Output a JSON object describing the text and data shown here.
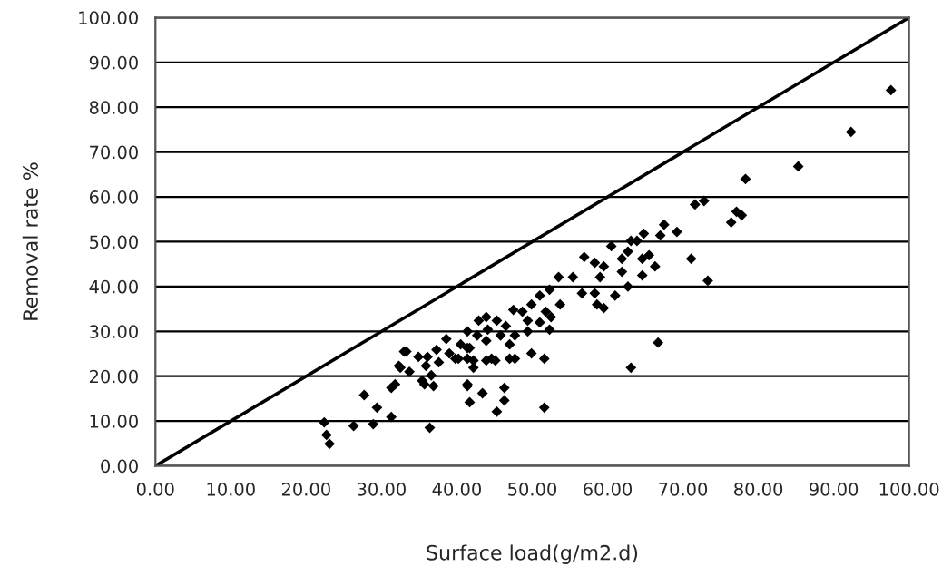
{
  "chart_data": {
    "type": "scatter",
    "xlabel": "Surface load(g/m2.d)",
    "ylabel": "Removal rate %",
    "xlim": [
      0,
      100
    ],
    "ylim": [
      0,
      100
    ],
    "xticks": [
      {
        "value": 0,
        "label": "0.00"
      },
      {
        "value": 10,
        "label": "10.00"
      },
      {
        "value": 20,
        "label": "20.00"
      },
      {
        "value": 30,
        "label": "30.00"
      },
      {
        "value": 40,
        "label": "40.00"
      },
      {
        "value": 50,
        "label": "50.00"
      },
      {
        "value": 60,
        "label": "60.00"
      },
      {
        "value": 70,
        "label": "70.00"
      },
      {
        "value": 80,
        "label": "80.00"
      },
      {
        "value": 90,
        "label": "90.00"
      },
      {
        "value": 100,
        "label": "100.00"
      }
    ],
    "yticks": [
      {
        "value": 0,
        "label": "0.00"
      },
      {
        "value": 10,
        "label": "10.00"
      },
      {
        "value": 20,
        "label": "20.00"
      },
      {
        "value": 30,
        "label": "30.00"
      },
      {
        "value": 40,
        "label": "40.00"
      },
      {
        "value": 50,
        "label": "50.00"
      },
      {
        "value": 60,
        "label": "60.00"
      },
      {
        "value": 70,
        "label": "70.00"
      },
      {
        "value": 80,
        "label": "80.00"
      },
      {
        "value": 90,
        "label": "90.00"
      },
      {
        "value": 100,
        "label": "100.00"
      }
    ],
    "grid": "y",
    "legend": false,
    "series": [
      {
        "marker": "diamond",
        "color": "#000000",
        "x": [
          97.6,
          92.3,
          85.3,
          78.3,
          71.6,
          72.8,
          77.1,
          77.8,
          76.4,
          67.5,
          67,
          69.2,
          66.3,
          71.1,
          73.3,
          64.8,
          63.9,
          63.1,
          60.5,
          65.5,
          64.6,
          62.7,
          61.9,
          56.9,
          58.3,
          59.5,
          64.6,
          61.9,
          53.5,
          55.4,
          59,
          56.6,
          58.3,
          61,
          62.7,
          52.3,
          51,
          58.6,
          59.5,
          49.9,
          53.7,
          51.8,
          52.5,
          48.7,
          47.5,
          49.4,
          51,
          46.5,
          45.3,
          44.1,
          42.9,
          42.7,
          45.8,
          47.7,
          49.4,
          52.3,
          43.9,
          47,
          41.7,
          40.5,
          66.7,
          41.4,
          43.9,
          45.1,
          47,
          47.7,
          49.9,
          51.6,
          40.2,
          42.2,
          63.1,
          41.4,
          43.4,
          46.3,
          41.7,
          46.3,
          45.3,
          51.6,
          22.4,
          22.7,
          23.1,
          26.3,
          28.9,
          31.3,
          27.7,
          29.4,
          31.3,
          31.8,
          36.4,
          33,
          33.3,
          32.3,
          32.5,
          33.7,
          34.9,
          35.9,
          36.1,
          37.3,
          35.4,
          36.6,
          35.7,
          36.9,
          38.6,
          39,
          37.6,
          39.8,
          41.4,
          42.2,
          41.4,
          44.6,
          41.4,
          43.9
        ],
        "values": [
          83.8,
          74.5,
          66.8,
          64,
          58.3,
          59.1,
          56.7,
          55.9,
          54.3,
          53.8,
          51.4,
          52.2,
          44.5,
          46.2,
          41.3,
          51.8,
          50.2,
          50.2,
          49,
          47,
          46.2,
          47.8,
          46.2,
          46.6,
          45.3,
          44.5,
          42.5,
          43.3,
          42.1,
          42.1,
          42.1,
          38.5,
          38.5,
          38,
          40,
          39.3,
          38,
          36,
          35.2,
          36,
          36,
          34.4,
          33.2,
          34.4,
          34.8,
          32.4,
          32,
          31.2,
          32.4,
          30.4,
          32.4,
          29.1,
          29.1,
          29.1,
          30,
          30.4,
          27.9,
          27.1,
          26.3,
          27.1,
          27.5,
          23.9,
          23.5,
          23.5,
          23.9,
          23.9,
          25.1,
          23.9,
          23.9,
          21.9,
          21.9,
          17.8,
          16.2,
          17.4,
          14.2,
          14.6,
          12.1,
          13,
          9.7,
          6.9,
          4.9,
          8.9,
          9.3,
          10.9,
          15.8,
          13,
          17.4,
          18.2,
          8.5,
          25.5,
          25.5,
          22.3,
          21.9,
          21,
          24.3,
          22.3,
          24.3,
          25.9,
          19,
          20.2,
          18.2,
          17.8,
          28.3,
          25.1,
          23.1,
          23.9,
          26.3,
          23.5,
          18.2,
          23.9,
          30,
          33.2
        ]
      },
      {
        "type": "line",
        "marker": "none",
        "color": "#000000",
        "x": [
          0,
          100
        ],
        "values": [
          0,
          100
        ]
      }
    ]
  }
}
